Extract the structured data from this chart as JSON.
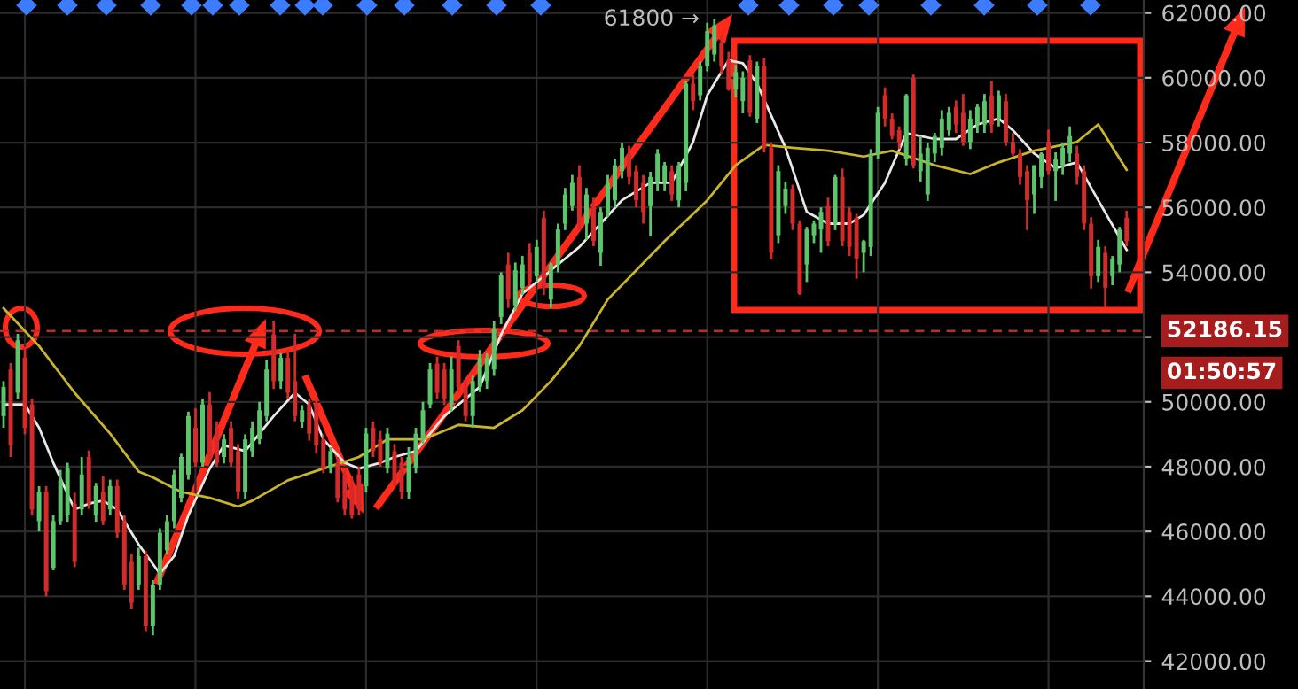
{
  "chart_data": {
    "type": "candlestick",
    "categories": [
      null,
      null,
      null,
      null,
      null,
      null,
      null,
      null,
      null,
      null,
      null,
      null,
      null,
      null,
      null,
      null,
      null,
      null,
      null,
      null,
      null,
      null,
      null,
      null,
      null,
      null,
      null,
      null,
      null,
      null,
      null,
      null,
      null,
      null,
      null,
      null,
      null,
      null,
      null,
      null,
      null,
      null,
      null,
      null,
      null,
      null,
      null,
      null,
      null,
      null,
      null,
      null,
      null,
      null,
      null,
      null,
      null,
      null,
      null,
      null,
      null,
      null,
      null,
      null,
      null,
      null,
      null,
      null,
      null,
      null,
      null,
      null,
      null,
      null,
      null,
      null,
      null,
      null,
      null,
      null,
      null,
      null,
      null,
      null,
      null,
      null,
      null,
      null,
      null,
      null,
      null,
      null,
      null,
      null,
      null,
      null,
      null,
      null,
      null,
      null,
      null,
      null,
      null,
      null,
      null,
      null,
      null,
      null,
      null,
      null,
      null,
      null,
      null,
      null,
      null,
      null,
      null,
      null,
      null,
      null,
      null,
      null,
      null,
      null,
      null,
      null,
      null,
      null,
      null,
      null,
      null,
      null,
      null,
      null,
      null,
      null,
      null,
      null,
      null,
      null,
      null,
      null,
      null,
      null,
      null,
      null,
      null,
      null,
      null,
      null,
      null,
      null,
      null,
      null,
      null,
      null,
      null,
      null,
      null
    ],
    "ohlc": [
      [
        49560,
        50640,
        49200,
        50460
      ],
      [
        51000,
        51200,
        48300,
        48660
      ],
      [
        50280,
        52100,
        50100,
        51900
      ],
      [
        51360,
        51700,
        49000,
        49200
      ],
      [
        49920,
        50100,
        46500,
        46680
      ],
      [
        46320,
        47400,
        46000,
        47220
      ],
      [
        47220,
        47400,
        44000,
        44160
      ],
      [
        44880,
        46500,
        44800,
        46320
      ],
      [
        46320,
        47900,
        46200,
        47580
      ],
      [
        46500,
        48120,
        46300,
        47940
      ],
      [
        46860,
        47200,
        44900,
        45060
      ],
      [
        46680,
        48300,
        46500,
        47760
      ],
      [
        48300,
        48500,
        46700,
        46860
      ],
      [
        46500,
        47500,
        46300,
        47400
      ],
      [
        47220,
        47700,
        46200,
        46320
      ],
      [
        46680,
        47600,
        46500,
        47400
      ],
      [
        47400,
        47600,
        45800,
        45960
      ],
      [
        46320,
        46500,
        44200,
        44340
      ],
      [
        45060,
        45300,
        43600,
        43800
      ],
      [
        44340,
        45500,
        44200,
        45240
      ],
      [
        45240,
        45400,
        42900,
        43080
      ],
      [
        43080,
        44500,
        42800,
        44340
      ],
      [
        44340,
        46100,
        44200,
        45960
      ],
      [
        45420,
        46500,
        45300,
        46320
      ],
      [
        46320,
        47900,
        46100,
        47760
      ],
      [
        47040,
        48400,
        46900,
        48300
      ],
      [
        47760,
        49700,
        47600,
        49560
      ],
      [
        49200,
        49800,
        48000,
        48120
      ],
      [
        48120,
        50100,
        48000,
        49920
      ],
      [
        49920,
        50300,
        48200,
        48300
      ],
      [
        49200,
        49400,
        48000,
        48120
      ],
      [
        48300,
        49000,
        48100,
        48840
      ],
      [
        49200,
        49400,
        48000,
        48120
      ],
      [
        48480,
        48700,
        47000,
        47220
      ],
      [
        47220,
        49000,
        47000,
        48840
      ],
      [
        48480,
        49400,
        48300,
        49200
      ],
      [
        48840,
        50000,
        48700,
        49740
      ],
      [
        49560,
        51300,
        49400,
        51000
      ],
      [
        52080,
        52500,
        50400,
        50640
      ],
      [
        50640,
        51500,
        50400,
        51360
      ],
      [
        51360,
        51600,
        50100,
        50280
      ],
      [
        50640,
        52100,
        49400,
        49560
      ],
      [
        49380,
        49900,
        49200,
        49740
      ],
      [
        49920,
        50100,
        48800,
        49020
      ],
      [
        49920,
        50100,
        48400,
        48660
      ],
      [
        48840,
        49000,
        47800,
        47940
      ],
      [
        47940,
        48600,
        47800,
        48480
      ],
      [
        48120,
        48300,
        46900,
        47040
      ],
      [
        47760,
        47900,
        46500,
        46680
      ],
      [
        47400,
        47700,
        46400,
        46500
      ],
      [
        47760,
        48000,
        46500,
        46680
      ],
      [
        47400,
        49200,
        47200,
        49020
      ],
      [
        49200,
        49400,
        48300,
        48480
      ],
      [
        48840,
        49100,
        48000,
        48120
      ],
      [
        47940,
        49200,
        47800,
        49020
      ],
      [
        48480,
        48700,
        47400,
        47580
      ],
      [
        48120,
        48300,
        47000,
        47220
      ],
      [
        47220,
        48600,
        47000,
        48300
      ],
      [
        47940,
        49200,
        47800,
        49020
      ],
      [
        48840,
        50000,
        48700,
        49740
      ],
      [
        49920,
        51200,
        49800,
        51000
      ],
      [
        51180,
        51400,
        50100,
        50280
      ],
      [
        51000,
        51200,
        49900,
        50100
      ],
      [
        49920,
        51400,
        49700,
        51000
      ],
      [
        51720,
        51900,
        50300,
        50460
      ],
      [
        50460,
        50700,
        49400,
        49560
      ],
      [
        49560,
        50800,
        49200,
        50640
      ],
      [
        50460,
        51600,
        50300,
        51360
      ],
      [
        50640,
        51500,
        50400,
        51360
      ],
      [
        51000,
        52500,
        50800,
        52260
      ],
      [
        52620,
        54000,
        52400,
        53900
      ],
      [
        54240,
        54600,
        52900,
        53160
      ],
      [
        52980,
        54300,
        52800,
        54060
      ],
      [
        53520,
        54500,
        53300,
        54240
      ],
      [
        54600,
        54900,
        53600,
        53700
      ],
      [
        53880,
        55000,
        53700,
        54780
      ],
      [
        55680,
        55900,
        53300,
        53520
      ],
      [
        53160,
        54300,
        52900,
        54240
      ],
      [
        54240,
        55500,
        54000,
        55320
      ],
      [
        55500,
        56600,
        55300,
        56400
      ],
      [
        56040,
        57000,
        55900,
        56760
      ],
      [
        56940,
        57300,
        55300,
        55500
      ],
      [
        55500,
        56600,
        55000,
        56400
      ],
      [
        56040,
        56300,
        54800,
        54960
      ],
      [
        54600,
        56000,
        54200,
        55860
      ],
      [
        55860,
        57000,
        55700,
        56760
      ],
      [
        56220,
        57500,
        56000,
        57300
      ],
      [
        57120,
        58000,
        56900,
        57840
      ],
      [
        57660,
        57900,
        56700,
        56940
      ],
      [
        57120,
        57300,
        56000,
        56220
      ],
      [
        56760,
        57000,
        55500,
        55860
      ],
      [
        56040,
        57100,
        55100,
        56940
      ],
      [
        56760,
        57800,
        56500,
        57660
      ],
      [
        56760,
        57400,
        56500,
        57300
      ],
      [
        57120,
        57300,
        56200,
        56400
      ],
      [
        56220,
        57400,
        56000,
        57300
      ],
      [
        56760,
        59900,
        56500,
        59820
      ],
      [
        59820,
        60100,
        59000,
        59280
      ],
      [
        59460,
        60500,
        59300,
        60360
      ],
      [
        60360,
        61700,
        60200,
        61440
      ],
      [
        60720,
        61800,
        60500,
        61620
      ],
      [
        61080,
        61300,
        60100,
        60360
      ],
      [
        60540,
        60800,
        59600,
        59640
      ],
      [
        59640,
        60400,
        59400,
        60180
      ],
      [
        59280,
        60200,
        58900,
        60000
      ],
      [
        60540,
        60700,
        58800,
        58920
      ],
      [
        58740,
        60500,
        58600,
        60360
      ],
      [
        60360,
        60600,
        57700,
        57840
      ],
      [
        57840,
        58000,
        54400,
        54600
      ],
      [
        55140,
        57300,
        54900,
        57120
      ],
      [
        56040,
        56800,
        55800,
        56580
      ],
      [
        56580,
        56700,
        55300,
        55500
      ],
      [
        55500,
        55600,
        53300,
        53340
      ],
      [
        54240,
        55400,
        53700,
        55320
      ],
      [
        55140,
        55600,
        54900,
        55500
      ],
      [
        55320,
        56000,
        54600,
        55860
      ],
      [
        56040,
        56300,
        54800,
        54960
      ],
      [
        55500,
        57000,
        55300,
        56940
      ],
      [
        56940,
        57200,
        54800,
        54960
      ],
      [
        55860,
        56000,
        54500,
        54780
      ],
      [
        55680,
        55800,
        53800,
        54420
      ],
      [
        54600,
        55000,
        54000,
        54960
      ],
      [
        54780,
        57800,
        54500,
        57660
      ],
      [
        57660,
        59100,
        57500,
        58920
      ],
      [
        59460,
        59700,
        58500,
        58740
      ],
      [
        58740,
        58900,
        58100,
        58200
      ],
      [
        58380,
        58500,
        57800,
        58020
      ],
      [
        57480,
        59500,
        57300,
        59460
      ],
      [
        60000,
        60100,
        57200,
        57300
      ],
      [
        57120,
        58200,
        56800,
        57660
      ],
      [
        56400,
        58000,
        56200,
        57840
      ],
      [
        57660,
        58300,
        57400,
        58200
      ],
      [
        57840,
        59000,
        57600,
        58740
      ],
      [
        58380,
        59100,
        58200,
        58920
      ],
      [
        59100,
        59300,
        58300,
        58560
      ],
      [
        58920,
        59500,
        57900,
        58020
      ],
      [
        58020,
        59000,
        57800,
        58740
      ],
      [
        58560,
        59200,
        58300,
        59100
      ],
      [
        58560,
        59500,
        58300,
        59280
      ],
      [
        59460,
        59900,
        58300,
        58560
      ],
      [
        58740,
        59600,
        58500,
        59460
      ],
      [
        59280,
        59500,
        57900,
        58020
      ],
      [
        58020,
        58300,
        57600,
        57660
      ],
      [
        57660,
        57800,
        56700,
        56940
      ],
      [
        57120,
        57300,
        55300,
        56220
      ],
      [
        56400,
        57300,
        55800,
        57300
      ],
      [
        56940,
        57700,
        56600,
        57660
      ],
      [
        58020,
        58400,
        57000,
        57120
      ],
      [
        57120,
        57700,
        56200,
        57480
      ],
      [
        57300,
        58000,
        57000,
        57840
      ],
      [
        57660,
        58500,
        57400,
        58200
      ],
      [
        57660,
        57900,
        56700,
        56940
      ],
      [
        57120,
        57300,
        55300,
        55500
      ],
      [
        55500,
        55700,
        53500,
        53880
      ],
      [
        53880,
        55000,
        53700,
        54780
      ],
      [
        54600,
        54800,
        52900,
        53520
      ],
      [
        53880,
        54500,
        53600,
        54420
      ],
      [
        54240,
        55400,
        54000,
        55320
      ],
      [
        55680,
        55900,
        54800,
        54960
      ]
    ],
    "series": [
      {
        "type": "line",
        "color": "#e8e8e8",
        "values": [
          49920,
          null,
          null,
          49920,
          null,
          49200,
          null,
          48120,
          null,
          null,
          46680,
          null,
          46860,
          null,
          46950,
          null,
          46680,
          null,
          null,
          45600,
          null,
          null,
          44700,
          null,
          45240,
          null,
          46500,
          null,
          null,
          47940,
          null,
          48660,
          null,
          null,
          48480,
          null,
          49020,
          null,
          49560,
          null,
          null,
          50280,
          null,
          49920,
          null,
          48840,
          null,
          null,
          48120,
          null,
          47940,
          null,
          null,
          48120,
          null,
          48300,
          null,
          null,
          48480,
          null,
          null,
          null,
          49560,
          null,
          null,
          null,
          null,
          50460,
          null,
          null,
          52080,
          null,
          null,
          53340,
          null,
          null,
          null,
          54060,
          null,
          null,
          null,
          54780,
          null,
          null,
          55500,
          null,
          null,
          56220,
          null,
          null,
          null,
          56760,
          null,
          null,
          56760,
          null,
          null,
          58020,
          null,
          59460,
          null,
          null,
          60540,
          null,
          60450,
          null,
          59820,
          null,
          null,
          null,
          57840,
          null,
          null,
          55860,
          null,
          null,
          55500,
          null,
          null,
          55500,
          null,
          55770,
          null,
          null,
          56760,
          null,
          null,
          58290,
          null,
          null,
          null,
          58110,
          null,
          null,
          58110,
          null,
          null,
          58560,
          null,
          null,
          58740,
          null,
          58380,
          null,
          null,
          57660,
          null,
          null,
          57210,
          null,
          null,
          57390,
          null,
          null,
          56220,
          null,
          null,
          null,
          54690
        ]
      },
      {
        "type": "line",
        "color": "#c9b52a",
        "values": [
          52890,
          null,
          null,
          null,
          null,
          51720,
          null,
          null,
          null,
          null,
          50280,
          null,
          null,
          null,
          null,
          49020,
          null,
          null,
          null,
          47850,
          null,
          47670,
          null,
          null,
          null,
          47220,
          null,
          null,
          null,
          47040,
          null,
          null,
          null,
          46770,
          null,
          46950,
          null,
          null,
          null,
          null,
          47580,
          null,
          null,
          null,
          null,
          47940,
          null,
          null,
          null,
          null,
          48300,
          null,
          null,
          null,
          48840,
          null,
          null,
          null,
          null,
          48840,
          null,
          null,
          null,
          null,
          49290,
          null,
          null,
          null,
          null,
          49200,
          null,
          null,
          null,
          49740,
          null,
          null,
          null,
          50640,
          null,
          null,
          null,
          51720,
          null,
          null,
          null,
          53160,
          null,
          null,
          null,
          54060,
          null,
          null,
          null,
          54960,
          null,
          null,
          null,
          null,
          null,
          56220,
          null,
          null,
          null,
          57300,
          null,
          null,
          null,
          57930,
          null,
          null,
          null,
          57840,
          null,
          null,
          null,
          null,
          57750,
          null,
          null,
          null,
          null,
          57570,
          null,
          null,
          null,
          57750,
          null,
          null,
          null,
          null,
          null,
          57300,
          null,
          null,
          null,
          null,
          57030,
          null,
          null,
          null,
          57390,
          null,
          null,
          null,
          null,
          57750,
          null,
          null,
          null,
          null,
          null,
          58020,
          null,
          null,
          58560,
          null,
          null,
          null,
          57160
        ]
      }
    ],
    "ylim": [
      41140,
      62400
    ],
    "yticks": [
      {
        "value": 42000,
        "label": "42000.00"
      },
      {
        "value": 44000,
        "label": "44000.00"
      },
      {
        "value": 46000,
        "label": "46000.00"
      },
      {
        "value": 48000,
        "label": "48000.00"
      },
      {
        "value": 50000,
        "label": "50000.00"
      },
      {
        "value": 52000,
        "label": null
      },
      {
        "value": 54000,
        "label": "54000.00"
      },
      {
        "value": 56000,
        "label": "56000.00"
      },
      {
        "value": 58000,
        "label": "58000.00"
      },
      {
        "value": 60000,
        "label": "60000.00"
      },
      {
        "value": 62000,
        "label": "62000.00"
      }
    ],
    "tick_labels": "y",
    "grid": true,
    "ref_lines": [
      {
        "axis": "y",
        "value": 52186.15,
        "label": "52186.15",
        "color": "#c62828",
        "line_style": "dashed"
      }
    ],
    "annotations": [
      "61800 →",
      "01:50:57"
    ]
  }
}
